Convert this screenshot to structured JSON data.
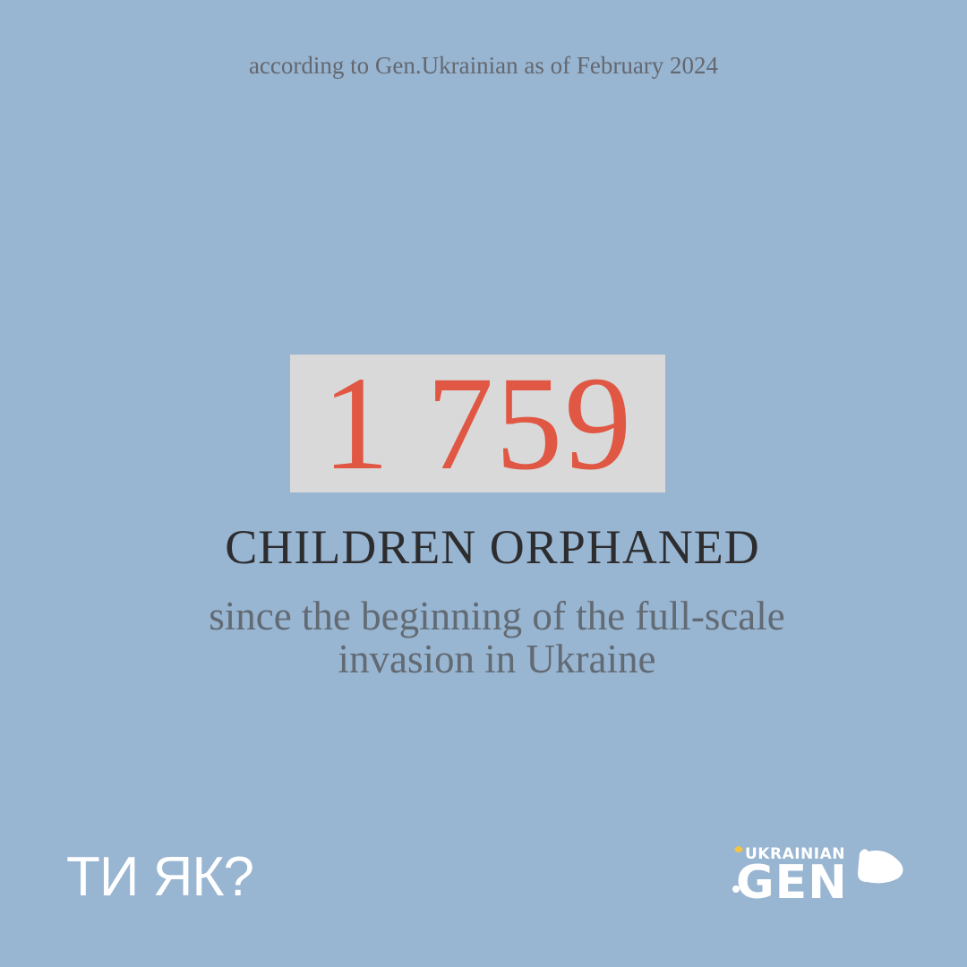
{
  "header": {
    "source": "according to Gen.Ukrainian as of February 2024"
  },
  "stat": {
    "number": "1 759",
    "headline": "CHILDREN ORPHANED",
    "subtitle_lines": [
      "since the beginning of the full-scale",
      "invasion in Ukraine"
    ]
  },
  "footer": {
    "left_logo": "ТИ ЯК?",
    "right_logo_top": "UKRAINIAN",
    "right_logo_main": "GEN"
  }
}
